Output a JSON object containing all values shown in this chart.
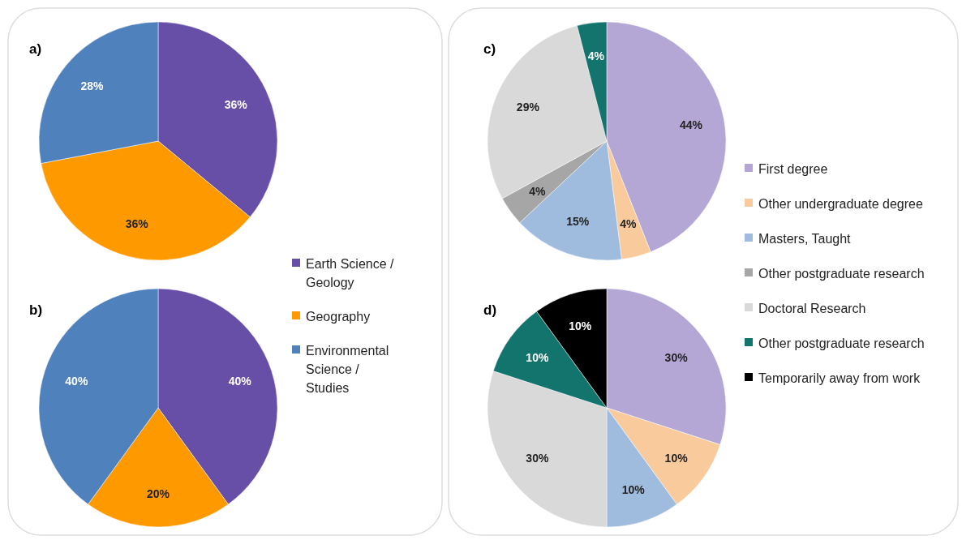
{
  "chart_data": [
    {
      "type": "pie",
      "title": "a)",
      "categories": [
        "Earth Science / Geology",
        "Geography",
        "Environmental Science / Studies"
      ],
      "values": [
        36,
        36,
        28
      ],
      "value_labels": [
        "36%",
        "36%",
        "28%"
      ],
      "colors": [
        "#674ea7",
        "#ff9900",
        "#4f81bd"
      ],
      "legend": "bottom right"
    },
    {
      "type": "pie",
      "title": "b)",
      "categories": [
        null,
        null,
        null
      ],
      "values": [
        40,
        20,
        40
      ],
      "value_labels": [
        "40%",
        "20%",
        "40%"
      ],
      "colors": [
        "#674ea7",
        "#ff9900",
        "#4f81bd"
      ]
    },
    {
      "type": "pie",
      "title": "c)",
      "categories": [
        "First degree",
        "Other undergraduate degree",
        "Masters, Taught",
        "Other postgraduate research",
        "Doctoral Research",
        "Other postgraduate research"
      ],
      "values": [
        44,
        4,
        15,
        4,
        29,
        4
      ],
      "value_labels": [
        "44%",
        "4%",
        "15%",
        "4%",
        "29%",
        "4%"
      ],
      "colors": [
        "#b4a7d6",
        "#f9cb9c",
        "#9fbbdd",
        "#a6a6a6",
        "#d9d9d9",
        "#13736d"
      ],
      "legend": "right"
    },
    {
      "type": "pie",
      "title": "d)",
      "categories": [
        null,
        null,
        null,
        null,
        null,
        "Temporarily away from work"
      ],
      "values": [
        30,
        10,
        10,
        30,
        10,
        10
      ],
      "value_labels": [
        "30%",
        "10%",
        "10%",
        "30%",
        "10%",
        "10%"
      ],
      "colors": [
        "#b4a7d6",
        "#f9cb9c",
        "#9fbbdd",
        "#d9d9d9",
        "#13736d",
        "#000000"
      ],
      "legend": "top right"
    }
  ]
}
